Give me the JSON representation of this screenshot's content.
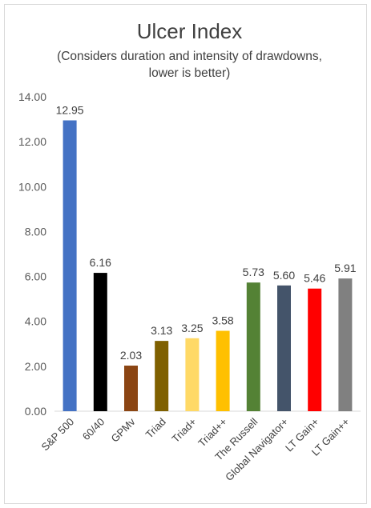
{
  "chart_data": {
    "type": "bar",
    "title": "Ulcer Index",
    "subtitle": "(Considers duration and intensity of drawdowns, lower is better)",
    "categories": [
      "S&P 500",
      "60/40",
      "GPMv",
      "Triad",
      "Triad+",
      "Triad++",
      "The Russell",
      "Global Navigator+",
      "LT Gain+",
      "LT Gain++"
    ],
    "values": [
      12.95,
      6.16,
      2.03,
      3.13,
      3.25,
      3.58,
      5.73,
      5.6,
      5.46,
      5.91
    ],
    "data_labels": [
      "12.95",
      "6.16",
      "2.03",
      "3.13",
      "3.25",
      "3.58",
      "5.73",
      "5.60",
      "5.46",
      "5.91"
    ],
    "colors": [
      "#4472c4",
      "#000000",
      "#8b4513",
      "#7f6000",
      "#ffd966",
      "#ffc000",
      "#548235",
      "#44546a",
      "#ff0000",
      "#808080"
    ],
    "ylim": [
      0,
      14
    ],
    "yticks": [
      "0.00",
      "2.00",
      "4.00",
      "6.00",
      "8.00",
      "10.00",
      "12.00",
      "14.00"
    ],
    "grid": false,
    "legend": "none"
  }
}
